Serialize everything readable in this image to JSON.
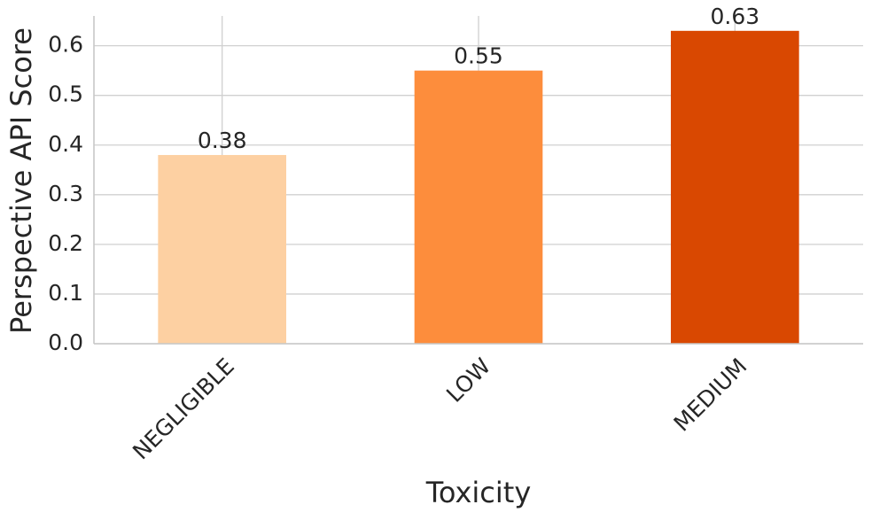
{
  "chart_data": {
    "type": "bar",
    "x_label": "Toxicity",
    "y_label": "Perspective API Score",
    "categories": [
      "NEGLIGIBLE",
      "LOW",
      "MEDIUM"
    ],
    "values": [
      0.38,
      0.55,
      0.63
    ],
    "colors": [
      "#fdd0a2",
      "#fd8d3c",
      "#d94801"
    ],
    "ylim": [
      0,
      0.66
    ],
    "yticks": [
      {
        "value": 0,
        "label": "0.0"
      },
      0.1,
      0.2,
      0.3,
      0.4,
      0.5,
      0.6
    ],
    "grid": true
  }
}
